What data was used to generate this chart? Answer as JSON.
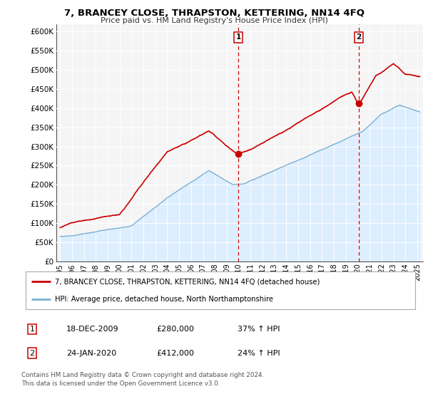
{
  "title": "7, BRANCEY CLOSE, THRAPSTON, KETTERING, NN14 4FQ",
  "subtitle": "Price paid vs. HM Land Registry's House Price Index (HPI)",
  "xlim": [
    1994.7,
    2025.5
  ],
  "ylim": [
    0,
    620000
  ],
  "yticks": [
    0,
    50000,
    100000,
    150000,
    200000,
    250000,
    300000,
    350000,
    400000,
    450000,
    500000,
    550000,
    600000
  ],
  "ytick_labels": [
    "£0",
    "£50K",
    "£100K",
    "£150K",
    "£200K",
    "£250K",
    "£300K",
    "£350K",
    "£400K",
    "£450K",
    "£500K",
    "£550K",
    "£600K"
  ],
  "xticks": [
    1995,
    1996,
    1997,
    1998,
    1999,
    2000,
    2001,
    2002,
    2003,
    2004,
    2005,
    2006,
    2007,
    2008,
    2009,
    2010,
    2011,
    2012,
    2013,
    2014,
    2015,
    2016,
    2017,
    2018,
    2019,
    2020,
    2021,
    2022,
    2023,
    2024,
    2025
  ],
  "red_line_color": "#cc0000",
  "blue_line_color": "#7ab0d4",
  "blue_fill_color": "#ddeeff",
  "vline_color": "#cc0000",
  "marker1_x": 2009.97,
  "marker1_y": 280000,
  "marker2_x": 2020.07,
  "marker2_y": 412000,
  "legend_line1": "7, BRANCEY CLOSE, THRAPSTON, KETTERING, NN14 4FQ (detached house)",
  "legend_line2": "HPI: Average price, detached house, North Northamptonshire",
  "table_row1": [
    "1",
    "18-DEC-2009",
    "£280,000",
    "37% ↑ HPI"
  ],
  "table_row2": [
    "2",
    "24-JAN-2020",
    "£412,000",
    "24% ↑ HPI"
  ],
  "footnote1": "Contains HM Land Registry data © Crown copyright and database right 2024.",
  "footnote2": "This data is licensed under the Open Government Licence v3.0.",
  "background_color": "#ffffff",
  "plot_bg_color": "#f5f5f5"
}
